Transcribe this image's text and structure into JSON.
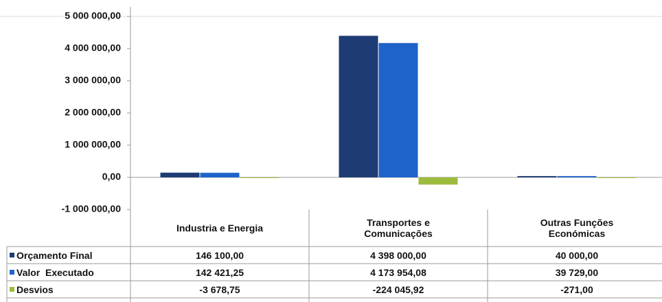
{
  "chart_data": {
    "type": "bar",
    "categories": [
      "Industria e Energia",
      "Transportes e\nComunicações",
      "Outras Funções\nEconómicas"
    ],
    "series": [
      {
        "name": "Orçamento Final",
        "color": "#1f3b73",
        "values": [
          146100,
          4398000,
          40000
        ],
        "value_labels": [
          "146 100,00",
          "4 398 000,00",
          "40 000,00"
        ]
      },
      {
        "name": "Valor  Executado",
        "color": "#1e63c9",
        "values": [
          142421.25,
          4173954.08,
          39729
        ],
        "value_labels": [
          "142 421,25",
          "4 173 954,08",
          "39 729,00"
        ]
      },
      {
        "name": "Desvios",
        "color": "#9dbb3c",
        "values": [
          -3678.75,
          -224045.92,
          -271
        ],
        "value_labels": [
          "-3 678,75",
          "-224 045,92",
          "-271,00"
        ]
      }
    ],
    "ylim": [
      -1000000,
      5000000
    ],
    "yticks": [
      {
        "value": -1000000,
        "label": "-1 000 000,00"
      },
      {
        "value": 0,
        "label": "0,00"
      },
      {
        "value": 1000000,
        "label": "1 000 000,00"
      },
      {
        "value": 2000000,
        "label": "2 000 000,00"
      },
      {
        "value": 3000000,
        "label": "3 000 000,00"
      },
      {
        "value": 4000000,
        "label": "4 000 000,00"
      },
      {
        "value": 5000000,
        "label": "5 000 000,00"
      }
    ],
    "grid": false
  }
}
